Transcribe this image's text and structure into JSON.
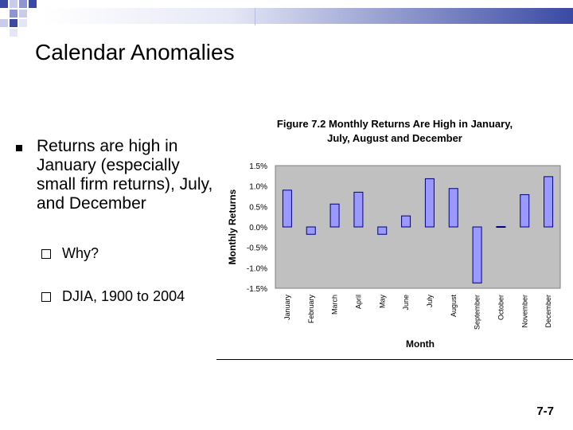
{
  "slide": {
    "title": "Calendar Anomalies",
    "bullet": "Returns are high in January (especially small firm returns), July, and December",
    "sub_bullets": [
      "Why?",
      "DJIA, 1900 to 2004"
    ],
    "slide_number": "7-7"
  },
  "chart_data": {
    "type": "bar",
    "title": "Figure 7.2 Monthly Returns Are High in January, July, August and December",
    "xlabel": "Month",
    "ylabel": "Monthly Returns",
    "categories": [
      "January",
      "February",
      "March",
      "April",
      "May",
      "June",
      "July",
      "August",
      "September",
      "October",
      "November",
      "December"
    ],
    "values": [
      0.009,
      -0.0018,
      0.0056,
      0.0085,
      -0.0018,
      0.0027,
      0.0118,
      0.0094,
      -0.0137,
      0.0001,
      0.0079,
      0.0123
    ],
    "ylim": [
      -0.015,
      0.015
    ],
    "yticks": [
      "1.5%",
      "1.0%",
      "0.5%",
      "0.0%",
      "-0.5%",
      "-1.0%",
      "-1.5%"
    ],
    "grid": false,
    "colors": {
      "bar": "#9999ff",
      "bar_stroke": "#000080",
      "plot_bg": "#c0c0c0"
    }
  }
}
